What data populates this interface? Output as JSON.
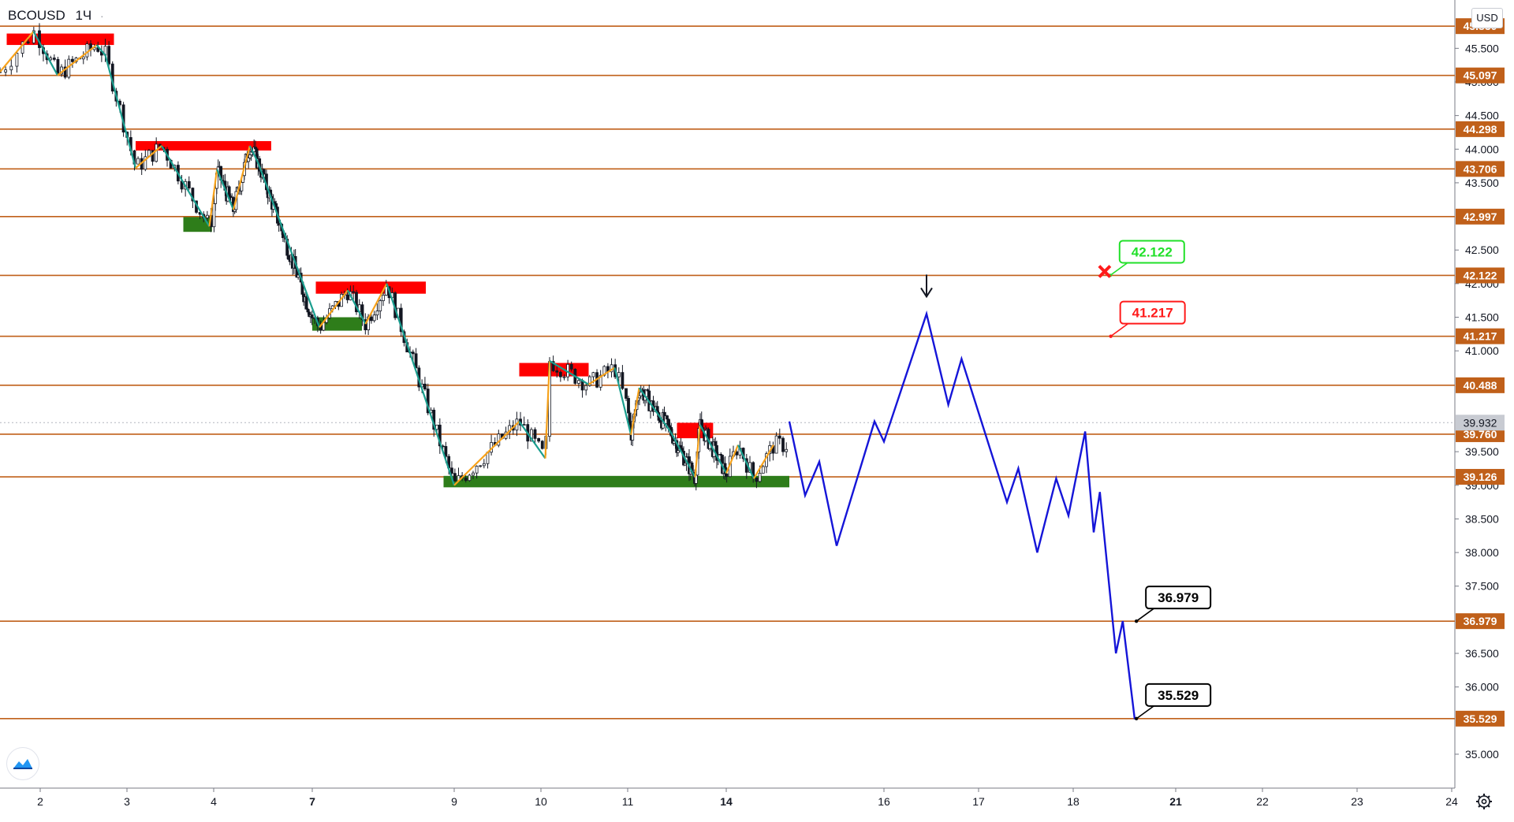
{
  "header": {
    "symbol": "BCOUSD",
    "interval": "1Ч"
  },
  "currency": "USD",
  "colors": {
    "level": "#c0601a",
    "resistance": "#ff0000",
    "support": "#2e7d1a",
    "down_leg": "#1a9e8f",
    "up_leg": "#f7a21b",
    "projection": "#1515d8",
    "price_label_bg": "#c0601a",
    "current_price_bg": "#c8cbd2"
  },
  "chart_data": {
    "type": "candlestick",
    "y_axis": {
      "min": 34.6,
      "max": 46.1,
      "ticks": [
        "45.500",
        "45.000",
        "44.500",
        "44.000",
        "43.500",
        "42.500",
        "42.000",
        "41.500",
        "41.000",
        "39.500",
        "39.000",
        "38.500",
        "38.000",
        "37.500",
        "36.500",
        "36.000",
        "35.000"
      ]
    },
    "x_axis": {
      "ticks": [
        {
          "label": "2",
          "bold": false
        },
        {
          "label": "3",
          "bold": false
        },
        {
          "label": "4",
          "bold": false
        },
        {
          "label": "7",
          "bold": true
        },
        {
          "label": "9",
          "bold": false
        },
        {
          "label": "10",
          "bold": false
        },
        {
          "label": "11",
          "bold": false
        },
        {
          "label": "14",
          "bold": true
        },
        {
          "label": "16",
          "bold": false
        },
        {
          "label": "17",
          "bold": false
        },
        {
          "label": "18",
          "bold": false
        },
        {
          "label": "21",
          "bold": true
        },
        {
          "label": "22",
          "bold": false
        },
        {
          "label": "23",
          "bold": false
        },
        {
          "label": "24",
          "bold": false
        }
      ]
    },
    "current_price": "39.932",
    "levels": [
      "45.830",
      "45.097",
      "44.298",
      "43.706",
      "42.997",
      "42.122",
      "41.217",
      "40.488",
      "39.760",
      "39.126",
      "36.979",
      "35.529"
    ],
    "resistance_zones": [
      {
        "from_day": 1.75,
        "to_day": 2.85,
        "low": 45.55,
        "high": 45.72
      },
      {
        "from_day": 3.1,
        "to_day": 5.75,
        "low": 43.98,
        "high": 44.12
      },
      {
        "from_day": 7.05,
        "to_day": 8.6,
        "low": 41.85,
        "high": 42.03
      },
      {
        "from_day": 9.75,
        "to_day": 10.55,
        "low": 40.62,
        "high": 40.82
      },
      {
        "from_day": 12.5,
        "to_day": 13.6,
        "low": 39.7,
        "high": 39.93
      }
    ],
    "support_zones": [
      {
        "from_day": 3.65,
        "to_day": 3.98,
        "low": 42.77,
        "high": 42.99
      },
      {
        "from_day": 7.0,
        "to_day": 7.7,
        "low": 41.3,
        "high": 41.5
      },
      {
        "from_day": 8.85,
        "to_day": 14.8,
        "low": 38.97,
        "high": 39.14
      }
    ],
    "zigzag": [
      [
        1.7,
        45.15
      ],
      [
        1.95,
        45.75
      ],
      [
        2.2,
        45.1
      ],
      [
        2.65,
        45.55
      ],
      [
        2.75,
        45.4
      ],
      [
        3.1,
        43.72
      ],
      [
        3.4,
        44.05
      ],
      [
        3.95,
        42.85
      ],
      [
        4.1,
        43.7
      ],
      [
        4.6,
        43.1
      ],
      [
        5.1,
        44.05
      ],
      [
        5.35,
        43.8
      ],
      [
        7.1,
        41.35
      ],
      [
        7.5,
        41.9
      ],
      [
        7.75,
        41.4
      ],
      [
        8.05,
        42.0
      ],
      [
        9.0,
        39.0
      ],
      [
        9.75,
        39.95
      ],
      [
        10.05,
        39.4
      ],
      [
        10.1,
        40.85
      ],
      [
        10.55,
        40.5
      ],
      [
        10.85,
        40.75
      ],
      [
        11.1,
        39.75
      ],
      [
        11.35,
        40.45
      ],
      [
        12.3,
        39.8
      ],
      [
        13.05,
        39.12
      ],
      [
        13.2,
        39.9
      ],
      [
        14.0,
        39.18
      ],
      [
        14.15,
        39.6
      ],
      [
        14.35,
        39.1
      ],
      [
        14.6,
        39.6
      ]
    ],
    "projection": [
      [
        14.8,
        39.95
      ],
      [
        15.0,
        38.85
      ],
      [
        15.18,
        39.35
      ],
      [
        15.4,
        38.1
      ],
      [
        15.88,
        39.95
      ],
      [
        16.0,
        39.65
      ],
      [
        16.45,
        41.55
      ],
      [
        16.68,
        40.2
      ],
      [
        16.82,
        40.88
      ],
      [
        17.3,
        38.75
      ],
      [
        17.42,
        39.25
      ],
      [
        17.62,
        38.0
      ],
      [
        17.82,
        39.1
      ],
      [
        17.95,
        38.55
      ],
      [
        18.35,
        39.8
      ],
      [
        18.6,
        38.3
      ],
      [
        18.78,
        38.9
      ],
      [
        19.25,
        36.5
      ],
      [
        19.45,
        36.98
      ],
      [
        19.8,
        35.52
      ]
    ],
    "callouts": [
      {
        "text": "42.122",
        "color": "#22e02a",
        "day": 19.08,
        "price": 42.122
      },
      {
        "text": "41.217",
        "color": "#ff1a1a",
        "day": 19.1,
        "price": 41.217
      },
      {
        "text": "36.979",
        "color": "#000000",
        "day": 19.85,
        "price": 36.979
      },
      {
        "text": "35.529",
        "color": "#000000",
        "day": 19.85,
        "price": 35.529
      }
    ],
    "markers": {
      "stop_cross": {
        "day": 18.92,
        "price": 42.18
      },
      "entry_arrow": {
        "day": 16.45,
        "price": 41.9
      }
    }
  }
}
